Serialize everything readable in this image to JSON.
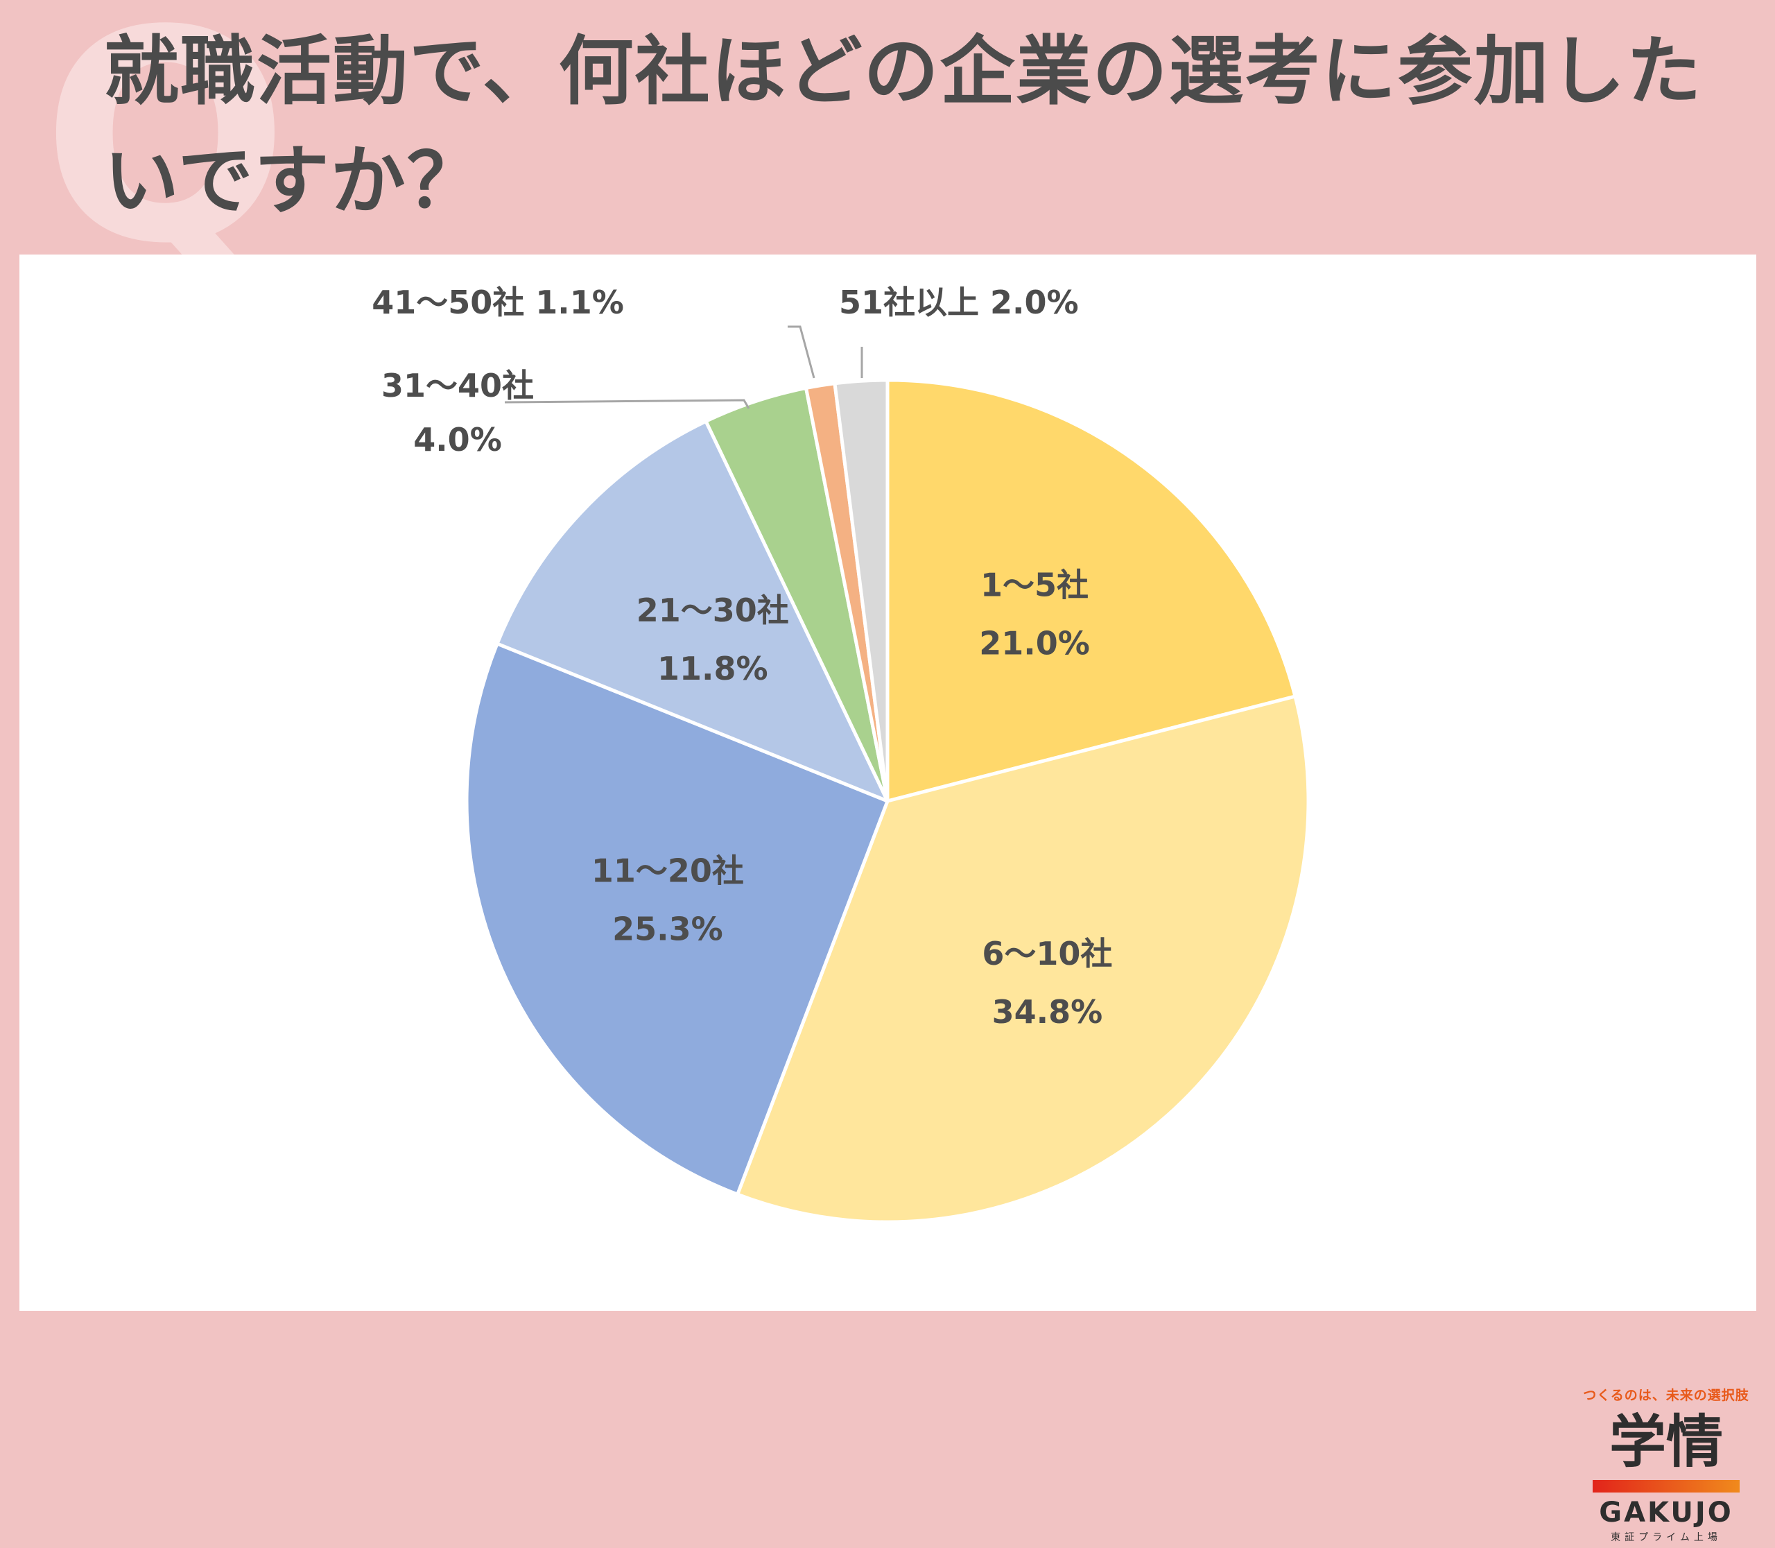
{
  "header": {
    "badge": "Q",
    "title": "就職活動で、何社ほどの企業の選考に参加したいですか？"
  },
  "chart_data": {
    "type": "pie",
    "start_angle_deg": 0,
    "direction": "clockwise",
    "legend": "none",
    "slices": [
      {
        "label": "1〜5社",
        "value": 21.0,
        "value_label": "21.0%",
        "color": "#ffd86b",
        "label_position": "inside"
      },
      {
        "label": "6〜10社",
        "value": 34.8,
        "value_label": "34.8%",
        "color": "#ffe69c",
        "label_position": "inside"
      },
      {
        "label": "11〜20社",
        "value": 25.3,
        "value_label": "25.3%",
        "color": "#8fabdd",
        "label_position": "inside"
      },
      {
        "label": "21〜30社",
        "value": 11.8,
        "value_label": "11.8%",
        "color": "#b4c7e7",
        "label_position": "inside"
      },
      {
        "label": "31〜40社",
        "value": 4.0,
        "value_label": "4.0%",
        "color": "#a9d18e",
        "label_position": "outside"
      },
      {
        "label": "41〜50社",
        "value": 1.1,
        "value_label": "1.1%",
        "color": "#f4b183",
        "label_position": "outside"
      },
      {
        "label": "51社以上",
        "value": 2.0,
        "value_label": "2.0%",
        "color": "#d9d9d9",
        "label_position": "outside"
      }
    ]
  },
  "logo": {
    "tagline": "つくるのは、未来の選択肢",
    "name_jp": "学情",
    "name_en": "GAKUJO",
    "listing": "東証プライム上場"
  }
}
